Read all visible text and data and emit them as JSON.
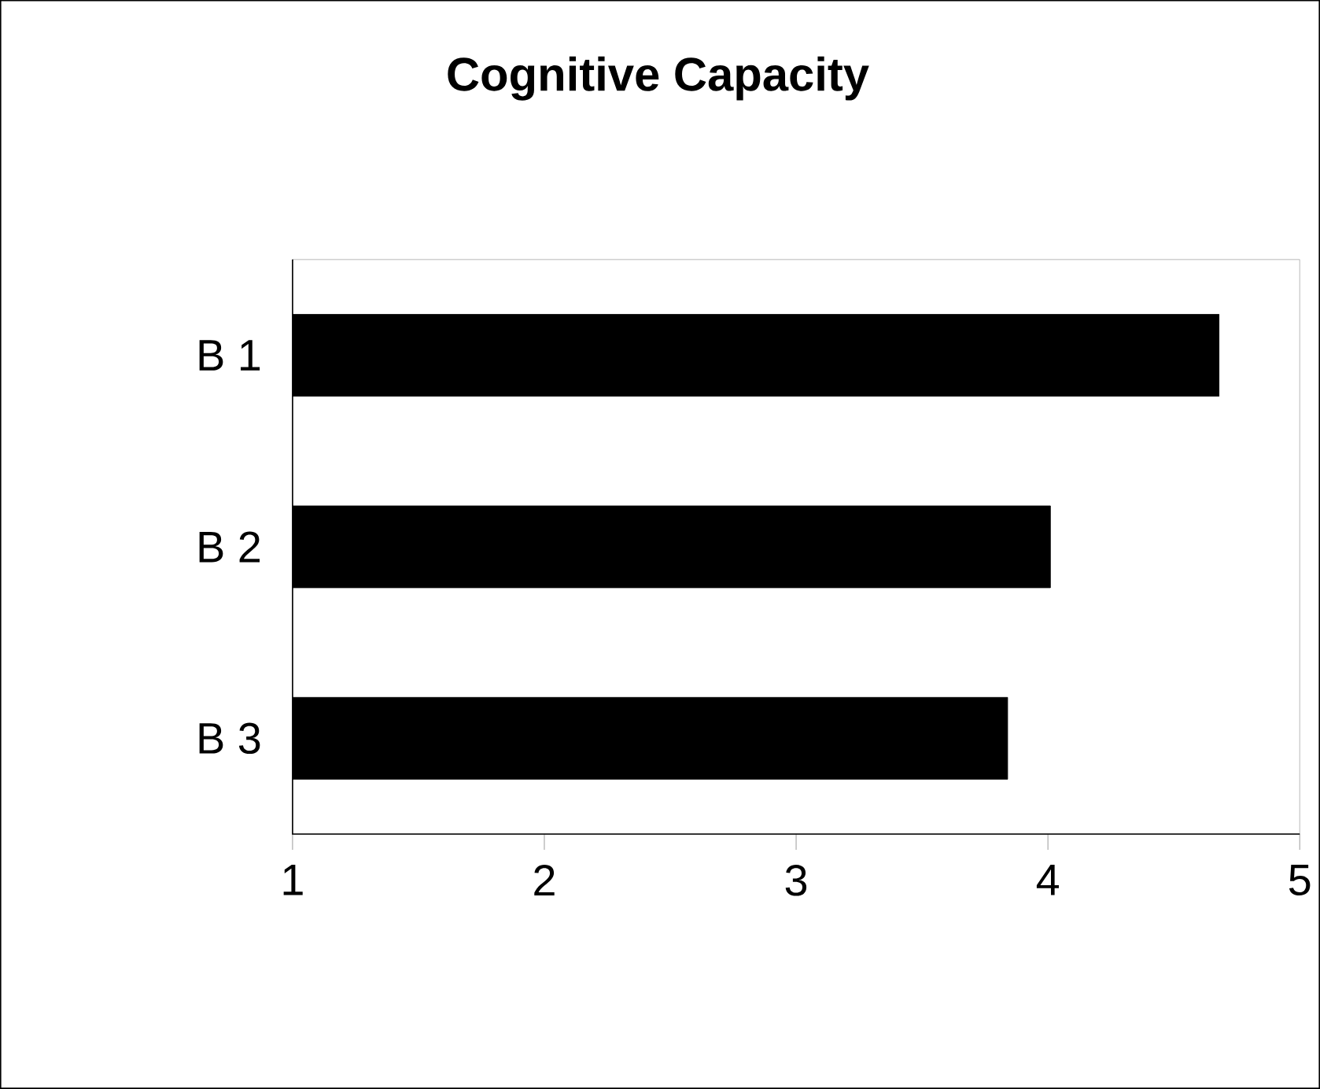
{
  "chart_data": {
    "type": "bar",
    "orientation": "horizontal",
    "title": "Cognitive Capacity",
    "categories": [
      "B 1",
      "B 2",
      "B 3"
    ],
    "values": [
      4.68,
      4.01,
      3.84
    ],
    "color": "#000000",
    "xlim": [
      1,
      5
    ],
    "xticks": [
      1,
      2,
      3,
      4,
      5
    ]
  }
}
